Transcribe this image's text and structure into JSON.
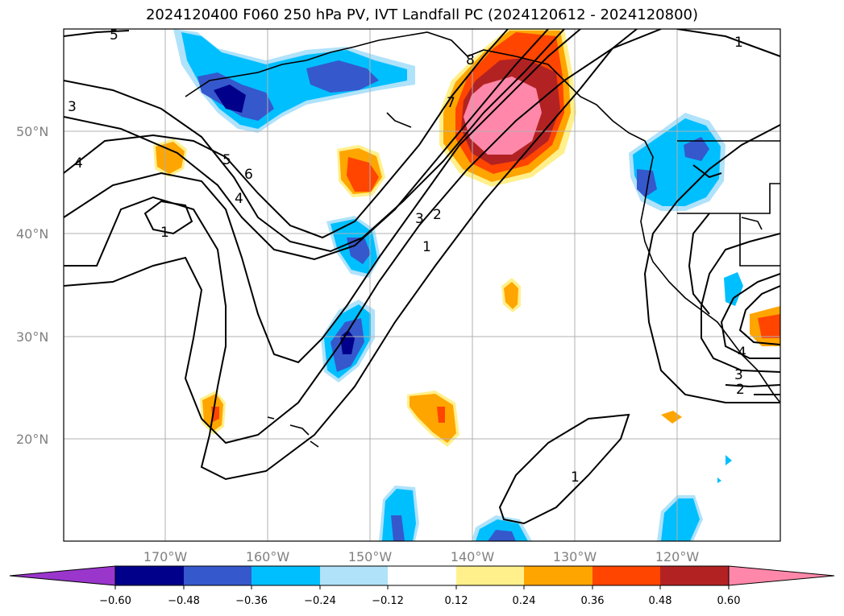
{
  "title": "2024120400 F060 250 hPa PV, IVT Landfall PC (2024120612 - 2024120800)",
  "map": {
    "lat_labels": [
      "50°N",
      "40°N",
      "30°N",
      "20°N"
    ],
    "lon_labels": [
      "170°W",
      "160°W",
      "150°W",
      "140°W",
      "130°W",
      "120°W"
    ],
    "contour_labels": [
      "5",
      "3",
      "4",
      "1",
      "5",
      "6",
      "4",
      "3",
      "2",
      "1",
      "8",
      "7",
      "1",
      "1",
      "3",
      "2",
      "4"
    ]
  },
  "colorbar": {
    "ticks": [
      "−0.60",
      "−0.48",
      "−0.36",
      "−0.24",
      "−0.12",
      "0.12",
      "0.24",
      "0.36",
      "0.48",
      "0.60"
    ],
    "colors": [
      "#9a36cc",
      "#00008b",
      "#3558cd",
      "#00bfff",
      "#b0e2fa",
      "#ffffff",
      "#fff08c",
      "#ffa500",
      "#ff4500",
      "#b22222",
      "#ff88aa"
    ]
  }
}
